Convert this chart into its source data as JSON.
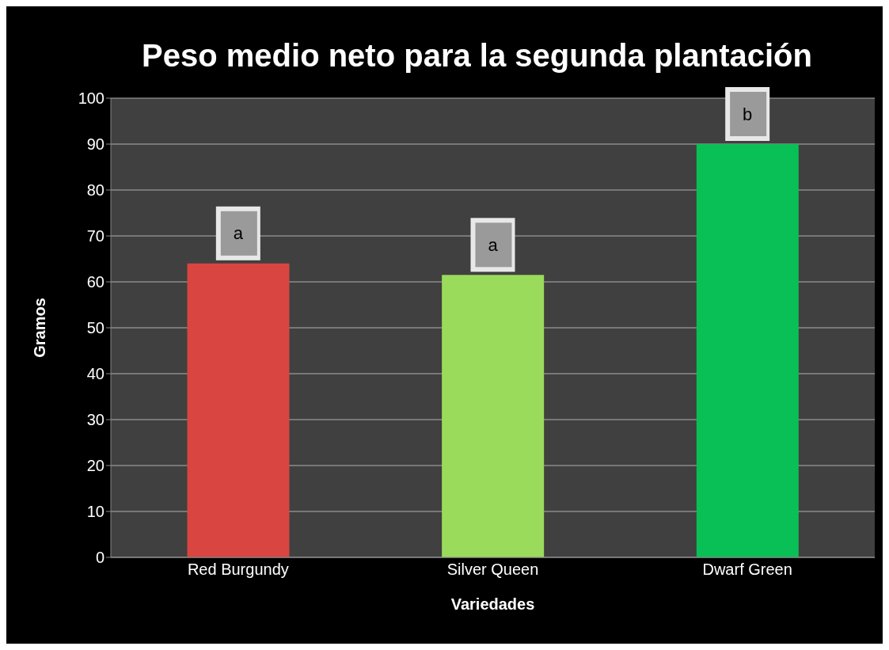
{
  "chart_data": {
    "type": "bar",
    "title": "Peso medio neto para la segunda plantación",
    "xlabel": "Variedades",
    "ylabel": "Gramos",
    "categories": [
      "Red Burgundy",
      "Silver Queen",
      "Dwarf Green"
    ],
    "values": [
      64,
      61.5,
      90
    ],
    "colors": [
      "#d94541",
      "#9bdb5b",
      "#08c055"
    ],
    "ylim": [
      0,
      100
    ],
    "yticks": [
      0,
      10,
      20,
      30,
      40,
      50,
      60,
      70,
      80,
      90,
      100
    ],
    "grid": "y",
    "annotations": [
      {
        "text": "a",
        "x": "Red Burgundy",
        "y": 64
      },
      {
        "text": "a",
        "x": "Silver Queen",
        "y": 61.5
      },
      {
        "text": "b",
        "x": "Dwarf Green",
        "y": 90
      }
    ]
  }
}
